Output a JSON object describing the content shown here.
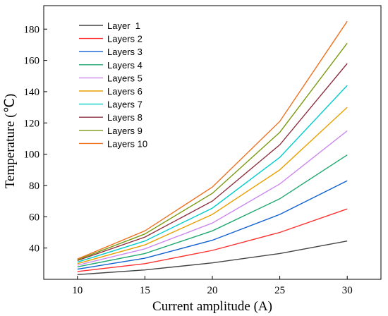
{
  "chart_data": {
    "type": "line",
    "title": "",
    "xlabel": "Current amplitude (A)",
    "ylabel": "Temperature (℃)",
    "x": [
      10,
      15,
      20,
      25,
      30
    ],
    "xlim": [
      7.5,
      32.5
    ],
    "ylim": [
      20,
      195
    ],
    "xticks": [
      "10",
      "15",
      "20",
      "25",
      "30"
    ],
    "yticks": [
      "40",
      "60",
      "80",
      "100",
      "120",
      "140",
      "160",
      "180"
    ],
    "grid": false,
    "legend": "top-left",
    "series": [
      {
        "name": "Layer  1",
        "color": "#444444",
        "values": [
          23,
          26,
          30.5,
          36.5,
          44.5
        ]
      },
      {
        "name": "Layers 2",
        "color": "#ff3030",
        "values": [
          25,
          30,
          38.5,
          50,
          65
        ]
      },
      {
        "name": "Layers 3",
        "color": "#1060d0",
        "values": [
          26.5,
          33.5,
          45,
          61.5,
          83
        ]
      },
      {
        "name": "Layers 4",
        "color": "#20a870",
        "values": [
          28,
          36.5,
          51,
          71.5,
          99.5
        ]
      },
      {
        "name": "Layers 5",
        "color": "#cc88ee",
        "values": [
          29,
          39.5,
          56,
          81,
          115
        ]
      },
      {
        "name": "Layers 6",
        "color": "#e8a000",
        "values": [
          30,
          42,
          61.5,
          90,
          130
        ]
      },
      {
        "name": "Layers 7",
        "color": "#00cccc",
        "values": [
          31,
          44.5,
          65.5,
          98,
          144
        ]
      },
      {
        "name": "Layers 8",
        "color": "#8b3040",
        "values": [
          32,
          47,
          70,
          106,
          158
        ]
      },
      {
        "name": "Layers 9",
        "color": "#7a9a10",
        "values": [
          32.5,
          49,
          75,
          114,
          171
        ]
      },
      {
        "name": "Layers 10",
        "color": "#f07020",
        "values": [
          33,
          51,
          79,
          121,
          185
        ]
      }
    ]
  }
}
